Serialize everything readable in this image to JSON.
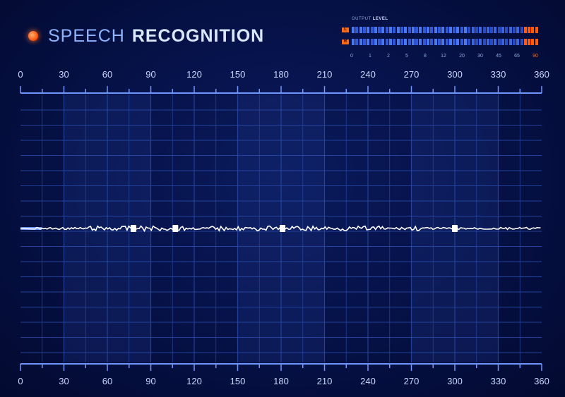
{
  "app": {
    "title_light": "SPEECH",
    "title_bold": "RECOGNITION"
  },
  "output_meter": {
    "label_light": "OUTPUT",
    "label_bold": "LEVEL",
    "channels": [
      {
        "name": "L"
      },
      {
        "name": "R"
      }
    ],
    "scale": [
      "0",
      "1",
      "2",
      "5",
      "8",
      "12",
      "20",
      "30",
      "45",
      "65",
      "90"
    ]
  },
  "axis": {
    "top_ticks": [
      "0",
      "30",
      "60",
      "90",
      "120",
      "150",
      "180",
      "210",
      "240",
      "270",
      "300",
      "330",
      "360"
    ],
    "bottom_ticks": [
      "0",
      "30",
      "60",
      "90",
      "120",
      "150",
      "180",
      "210",
      "240",
      "270",
      "300",
      "330",
      "360"
    ]
  },
  "colors": {
    "accent": "#ff6a14",
    "wave": "#3a8cff",
    "grid": "#2a4aa8",
    "text": "#c8d8ff"
  },
  "icons": {
    "status_dot": "record-dot-icon"
  }
}
